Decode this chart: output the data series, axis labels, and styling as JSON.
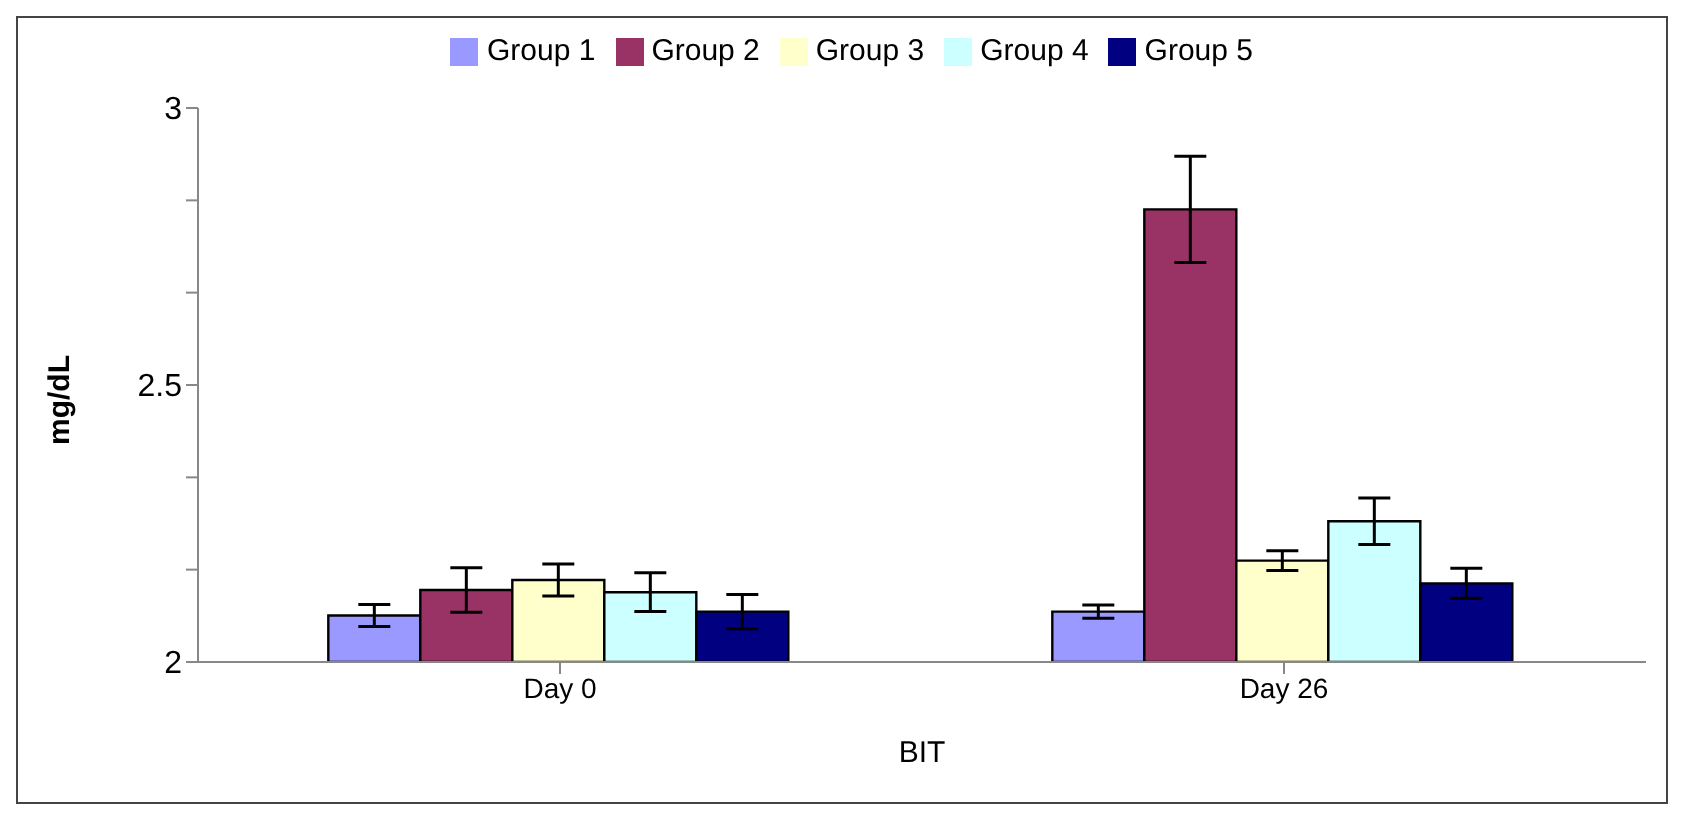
{
  "chart_data": {
    "type": "bar",
    "xlabel": "BIT",
    "ylabel": "mg/dL",
    "categories": [
      "Day 0",
      "Day 26"
    ],
    "series": [
      {
        "name": "Group 1",
        "color": "#9999ff",
        "values": [
          2.084,
          2.091
        ],
        "errors": [
          0.02,
          0.012
        ]
      },
      {
        "name": "Group 2",
        "color": "#993366",
        "values": [
          2.13,
          2.817
        ],
        "errors": [
          0.04,
          0.096
        ]
      },
      {
        "name": "Group 3",
        "color": "#ffffcc",
        "values": [
          2.148,
          2.183
        ],
        "errors": [
          0.029,
          0.018
        ]
      },
      {
        "name": "Group 4",
        "color": "#ccffff",
        "values": [
          2.126,
          2.254
        ],
        "errors": [
          0.035,
          0.042
        ]
      },
      {
        "name": "Group 5",
        "color": "#000080",
        "values": [
          2.091,
          2.142
        ],
        "errors": [
          0.031,
          0.027
        ]
      }
    ],
    "ylim": [
      2,
      3
    ],
    "yticks": [
      2,
      {
        "value": 2.1667,
        "label": null
      },
      {
        "value": 2.3333,
        "label": null
      },
      2.5,
      {
        "value": 2.6667,
        "label": null
      },
      {
        "value": 2.8333,
        "label": null
      },
      3
    ],
    "grid": false,
    "legend": "top"
  }
}
